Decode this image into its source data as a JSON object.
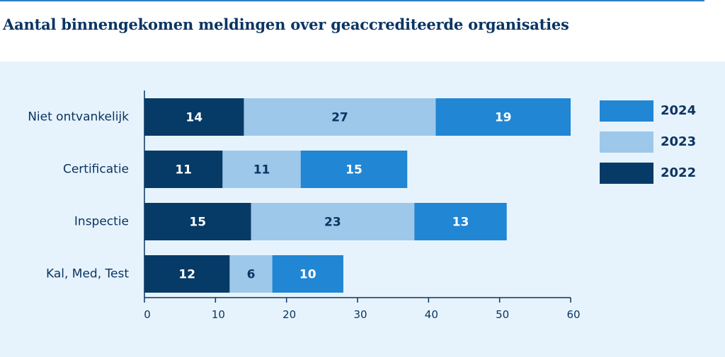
{
  "chart_data": {
    "type": "bar",
    "orientation": "horizontal",
    "stacked": true,
    "title": "Aantal binnengekomen meldingen over geaccrediteerde organisaties",
    "categories": [
      "Niet ontvankelijk",
      "Certificatie",
      "Inspectie",
      "Kal, Med, Test"
    ],
    "series": [
      {
        "name": "2022",
        "color": "#063a67",
        "label_color": "#ffffff",
        "values": [
          14,
          11,
          15,
          12
        ]
      },
      {
        "name": "2023",
        "color": "#9dc8ea",
        "label_color": "#0a3562",
        "values": [
          27,
          11,
          23,
          6
        ]
      },
      {
        "name": "2024",
        "color": "#2186d4",
        "label_color": "#ffffff",
        "values": [
          19,
          15,
          13,
          10
        ]
      }
    ],
    "xlim": [
      0,
      60
    ],
    "xticks": [
      0,
      10,
      20,
      30,
      40,
      50,
      60
    ],
    "legend_order": [
      "2024",
      "2023",
      "2022"
    ],
    "legend_position": "right",
    "grid": false
  }
}
